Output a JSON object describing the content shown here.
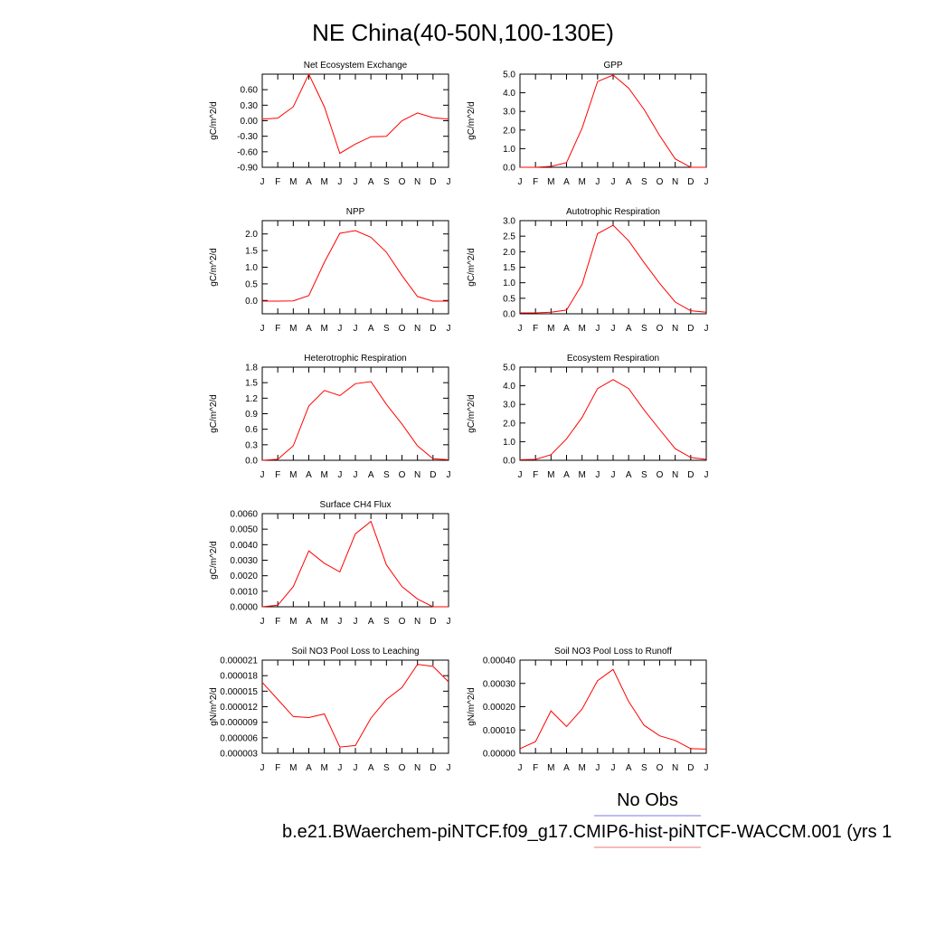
{
  "figure": {
    "title": "NE China(40-50N,100-130E)",
    "legend": {
      "obs_label": "No Obs",
      "model_label": "b.e21.BWaerchem-piNTCF.f09_g17.CMIP6-hist-piNTCF-WACCM.001 (yrs 1",
      "obs_line_color": "#7777ee",
      "model_line_color": "#ee7777"
    },
    "line_color": "#ff0000"
  },
  "chart_data": [
    {
      "type": "line",
      "title": "Net Ecosystem Exchange",
      "ylabel": "gC/m^2/d",
      "categories": [
        "J",
        "F",
        "M",
        "A",
        "M",
        "J",
        "J",
        "A",
        "S",
        "O",
        "N",
        "D",
        "J"
      ],
      "values": [
        0.03,
        0.05,
        0.27,
        0.9,
        0.27,
        -0.63,
        -0.45,
        -0.31,
        -0.3,
        0.0,
        0.15,
        0.06,
        0.03
      ],
      "ylim": [
        -0.9,
        0.9
      ],
      "yticks": [
        -0.9,
        -0.6,
        -0.3,
        0.0,
        0.3,
        0.6
      ],
      "ytick_labels": [
        "-0.90",
        "-0.60",
        "-0.30",
        "0.00",
        "0.30",
        "0.60"
      ]
    },
    {
      "type": "line",
      "title": "GPP",
      "ylabel": "gC/m^2/d",
      "categories": [
        "J",
        "F",
        "M",
        "A",
        "M",
        "J",
        "J",
        "A",
        "S",
        "O",
        "N",
        "D",
        "J"
      ],
      "values": [
        0.0,
        0.0,
        0.05,
        0.25,
        2.1,
        4.6,
        4.95,
        4.25,
        3.1,
        1.7,
        0.45,
        0.0,
        0.0
      ],
      "ylim": [
        0.0,
        5.0
      ],
      "yticks": [
        0.0,
        1.0,
        2.0,
        3.0,
        4.0,
        5.0
      ],
      "ytick_labels": [
        "0.0",
        "1.0",
        "2.0",
        "3.0",
        "4.0",
        "5.0"
      ]
    },
    {
      "type": "line",
      "title": "NPP",
      "ylabel": "gC/m^2/d",
      "categories": [
        "J",
        "F",
        "M",
        "A",
        "M",
        "J",
        "J",
        "A",
        "S",
        "O",
        "N",
        "D",
        "J"
      ],
      "values": [
        -0.02,
        -0.02,
        -0.01,
        0.15,
        1.15,
        2.02,
        2.1,
        1.9,
        1.45,
        0.75,
        0.12,
        -0.02,
        -0.02
      ],
      "ylim": [
        -0.4,
        2.4
      ],
      "yticks": [
        0.0,
        0.5,
        1.0,
        1.5,
        2.0
      ],
      "ytick_labels": [
        "0.0",
        "0.5",
        "1.0",
        "1.5",
        "2.0"
      ]
    },
    {
      "type": "line",
      "title": "Autotrophic Respiration",
      "ylabel": "gC/m^2/d",
      "categories": [
        "J",
        "F",
        "M",
        "A",
        "M",
        "J",
        "J",
        "A",
        "S",
        "O",
        "N",
        "D",
        "J"
      ],
      "values": [
        0.03,
        0.03,
        0.05,
        0.12,
        0.95,
        2.58,
        2.85,
        2.35,
        1.65,
        0.98,
        0.38,
        0.1,
        0.05
      ],
      "ylim": [
        0.0,
        3.0
      ],
      "yticks": [
        0.0,
        0.5,
        1.0,
        1.5,
        2.0,
        2.5,
        3.0
      ],
      "ytick_labels": [
        "0.0",
        "0.5",
        "1.0",
        "1.5",
        "2.0",
        "2.5",
        "3.0"
      ]
    },
    {
      "type": "line",
      "title": "Heterotrophic Respiration",
      "ylabel": "gC/m^2/d",
      "categories": [
        "J",
        "F",
        "M",
        "A",
        "M",
        "J",
        "J",
        "A",
        "S",
        "O",
        "N",
        "D",
        "J"
      ],
      "values": [
        0.0,
        0.02,
        0.28,
        1.05,
        1.35,
        1.25,
        1.48,
        1.52,
        1.08,
        0.7,
        0.28,
        0.03,
        0.01
      ],
      "ylim": [
        0.0,
        1.8
      ],
      "yticks": [
        0.0,
        0.3,
        0.6,
        0.9,
        1.2,
        1.5,
        1.8
      ],
      "ytick_labels": [
        "0.0",
        "0.3",
        "0.6",
        "0.9",
        "1.2",
        "1.5",
        "1.8"
      ]
    },
    {
      "type": "line",
      "title": "Ecosystem Respiration",
      "ylabel": "gC/m^2/d",
      "categories": [
        "J",
        "F",
        "M",
        "A",
        "M",
        "J",
        "J",
        "A",
        "S",
        "O",
        "N",
        "D",
        "J"
      ],
      "values": [
        0.03,
        0.05,
        0.3,
        1.15,
        2.3,
        3.85,
        4.33,
        3.85,
        2.7,
        1.65,
        0.62,
        0.15,
        0.05
      ],
      "ylim": [
        0.0,
        5.0
      ],
      "yticks": [
        0.0,
        1.0,
        2.0,
        3.0,
        4.0,
        5.0
      ],
      "ytick_labels": [
        "0.0",
        "1.0",
        "2.0",
        "3.0",
        "4.0",
        "5.0"
      ]
    },
    {
      "type": "line",
      "title": "Surface CH4 Flux",
      "ylabel": "gC/m^2/d",
      "categories": [
        "J",
        "F",
        "M",
        "A",
        "M",
        "J",
        "J",
        "A",
        "S",
        "O",
        "N",
        "D",
        "J"
      ],
      "values": [
        0.0,
        0.0001,
        0.0013,
        0.0036,
        0.0028,
        0.00225,
        0.0047,
        0.0055,
        0.0027,
        0.0013,
        0.0005,
        0.0,
        0.0
      ],
      "ylim": [
        0.0,
        0.006
      ],
      "yticks": [
        0.0,
        0.001,
        0.002,
        0.003,
        0.004,
        0.005,
        0.006
      ],
      "ytick_labels": [
        "0.0000",
        "0.0010",
        "0.0020",
        "0.0030",
        "0.0040",
        "0.0050",
        "0.0060"
      ]
    },
    {
      "type": "line",
      "title": "Soil NO3 Pool Loss to Leaching",
      "ylabel": "gN/m^2/d",
      "categories": [
        "J",
        "F",
        "M",
        "A",
        "M",
        "J",
        "J",
        "A",
        "S",
        "O",
        "N",
        "D",
        "J"
      ],
      "values": [
        1.67e-05,
        1.34e-05,
        1.01e-05,
        9.9e-06,
        1.06e-05,
        4.2e-06,
        4.5e-06,
        9.8e-06,
        1.34e-05,
        1.57e-05,
        2.02e-05,
        1.98e-05,
        1.68e-05
      ],
      "ylim": [
        3e-06,
        2.1e-05
      ],
      "yticks": [
        3e-06,
        6e-06,
        9e-06,
        1.2e-05,
        1.5e-05,
        1.8e-05,
        2.1e-05
      ],
      "ytick_labels": [
        "0.000003",
        "0.000006",
        "0.000009",
        "0.000012",
        "0.000015",
        "0.000018",
        "0.000021"
      ]
    },
    {
      "type": "line",
      "title": "Soil NO3 Pool Loss to Runoff",
      "ylabel": "gN/m^2/d",
      "categories": [
        "J",
        "F",
        "M",
        "A",
        "M",
        "J",
        "J",
        "A",
        "S",
        "O",
        "N",
        "D",
        "J"
      ],
      "values": [
        2e-05,
        5e-05,
        0.000182,
        0.000115,
        0.00019,
        0.000312,
        0.00036,
        0.000222,
        0.00012,
        7.5e-05,
        5.5e-05,
        2e-05,
        1.8e-05
      ],
      "ylim": [
        0.0,
        0.0004
      ],
      "yticks": [
        0.0,
        0.0001,
        0.0002,
        0.0003,
        0.0004
      ],
      "ytick_labels": [
        "0.00000",
        "0.00010",
        "0.00020",
        "0.00030",
        "0.00040"
      ]
    }
  ]
}
